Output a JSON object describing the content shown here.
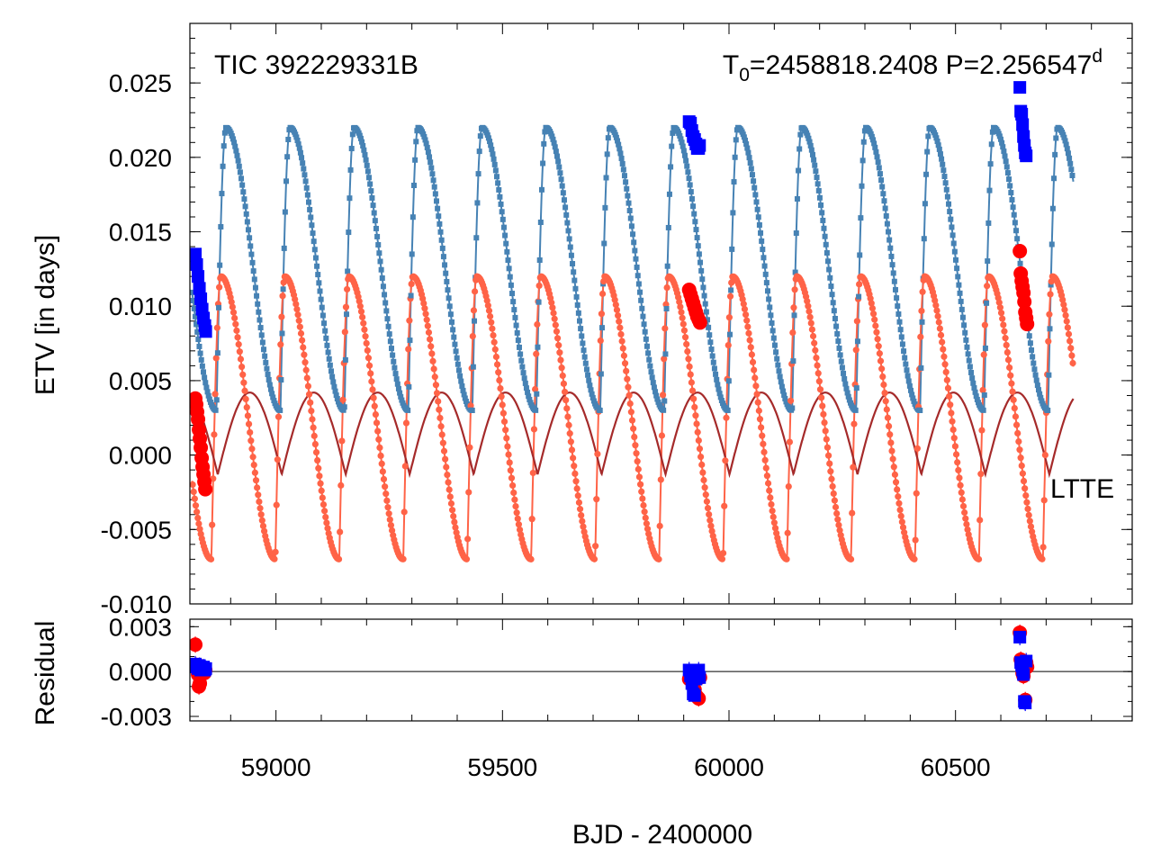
{
  "figure": {
    "target": "TIC 392229331B",
    "ephemeris": {
      "t0_label": "T",
      "t0_sub": "0",
      "t0_value": "=2458818.2408 P=2.256547",
      "t0_sup": "d"
    },
    "ltte_label": "LTTE"
  },
  "chart_data": [
    {
      "panel": "main",
      "type": "scatter",
      "title": "",
      "xlabel": "BJD - 2400000",
      "ylabel": "ETV [in days]",
      "xlim": [
        58810,
        60890
      ],
      "ylim": [
        -0.01,
        0.029
      ],
      "yticks": [
        -0.01,
        -0.005,
        0.0,
        0.005,
        0.01,
        0.015,
        0.02,
        0.025
      ],
      "ytick_labels": [
        "-0.010",
        "-0.005",
        "0.000",
        "0.005",
        "0.010",
        "0.015",
        "0.020",
        "0.025"
      ],
      "xticks": [
        59000,
        59500,
        60000,
        60500
      ],
      "xtick_labels": [
        "59000",
        "59500",
        "60000",
        "60500"
      ],
      "x_minor_step": 100,
      "grid": false,
      "model_range": [
        58815,
        60760
      ],
      "model": {
        "period_days": 141.2,
        "sampling_days": 2.2565,
        "primary": {
          "name": "primary model",
          "color": "#4682b4",
          "marker": "square",
          "min": 0.003,
          "max": 0.022,
          "rise_fraction": 0.15
        },
        "secondary": {
          "name": "secondary model",
          "color": "#ff6347",
          "marker": "circle",
          "min": -0.007,
          "max": 0.012,
          "rise_fraction": 0.15
        },
        "ltte": {
          "name": "LTTE",
          "color": "#a52a2a",
          "min": -0.0013,
          "max": 0.0042
        }
      },
      "series": [
        {
          "name": "primary observed",
          "color": "#0000ff",
          "marker": "square",
          "x": [
            58822,
            58825,
            58828,
            58831,
            58834,
            58837,
            58840,
            58843,
            58845,
            59912,
            59915,
            59918,
            59921,
            59924,
            59927,
            59930,
            59933,
            59935,
            60642,
            60644,
            60646,
            60648,
            60650,
            60652,
            60654,
            60656
          ],
          "y": [
            0.0135,
            0.0128,
            0.012,
            0.0112,
            0.0105,
            0.0098,
            0.0092,
            0.0087,
            0.0083,
            0.0224,
            0.0223,
            0.0218,
            0.0214,
            0.0212,
            0.0209,
            0.0206,
            0.0206,
            0.0208,
            0.0247,
            0.0231,
            0.0229,
            0.0222,
            0.0214,
            0.0208,
            0.0203,
            0.0201
          ]
        },
        {
          "name": "secondary observed",
          "color": "#ff0000",
          "marker": "circle",
          "x": [
            58822,
            58824,
            58826,
            58828,
            58830,
            58832,
            58834,
            58836,
            58838,
            58840,
            58842,
            58844,
            59912,
            59915,
            59918,
            59921,
            59924,
            59927,
            59930,
            59933,
            59936,
            60642,
            60644,
            60646,
            60648,
            60650,
            60652,
            60654,
            60656,
            60658
          ],
          "y": [
            0.0038,
            0.0034,
            0.0029,
            0.0024,
            0.0017,
            0.0011,
            0.0005,
            -0.0002,
            -0.0008,
            -0.0013,
            -0.0018,
            -0.0023,
            0.0111,
            0.0108,
            0.0105,
            0.0102,
            0.0099,
            0.0096,
            0.0093,
            0.0091,
            0.0089,
            0.0137,
            0.0122,
            0.0117,
            0.0113,
            0.0109,
            0.0103,
            0.0096,
            0.0092,
            0.0088
          ]
        }
      ]
    },
    {
      "panel": "residual",
      "type": "scatter",
      "xlabel": "BJD - 2400000",
      "ylabel": "Residual",
      "xlim": [
        58810,
        60890
      ],
      "ylim": [
        -0.0033,
        0.0035
      ],
      "yticks": [
        -0.003,
        0.0,
        0.003
      ],
      "ytick_labels": [
        "-0.003",
        "0.000",
        "0.003"
      ],
      "zero_line": true,
      "series": [
        {
          "name": "primary residual",
          "color": "#0000ff",
          "marker": "square",
          "x": [
            58822,
            58825,
            58828,
            58831,
            58834,
            58837,
            58840,
            58843,
            58845,
            59912,
            59915,
            59918,
            59921,
            59924,
            59927,
            59930,
            59933,
            59935,
            60642,
            60644,
            60646,
            60648,
            60650,
            60652,
            60654,
            60656
          ],
          "y": [
            0.0005,
            0.0003,
            0.0002,
            0.0004,
            0.0001,
            0.0002,
            0.0003,
            0.0001,
            0.0002,
            0.0001,
            -0.0003,
            -0.0008,
            -0.0015,
            -0.0016,
            -0.0005,
            -0.0002,
            0.0001,
            -0.0004,
            0.0023,
            0.0006,
            0.0004,
            0.0001,
            -0.0002,
            -0.002,
            -0.0021,
            0.0007
          ]
        },
        {
          "name": "secondary residual",
          "color": "#ff0000",
          "marker": "circle",
          "x": [
            58822,
            58824,
            58826,
            58828,
            58830,
            58832,
            58834,
            58836,
            58838,
            58840,
            58842,
            58844,
            59912,
            59915,
            59918,
            59921,
            59924,
            59927,
            59930,
            59933,
            59936,
            60642,
            60644,
            60646,
            60648,
            60650,
            60652,
            60654,
            60656,
            60658
          ],
          "y": [
            0.0018,
            0.0004,
            0.0002,
            -0.0002,
            -0.001,
            -0.0008,
            0.0001,
            0.0003,
            0.0,
            0.0002,
            -0.0001,
            0.0001,
            -0.0005,
            -0.0004,
            -0.0002,
            -0.0006,
            -0.0012,
            -0.0016,
            -0.0017,
            -0.0018,
            -0.0004,
            0.0026,
            0.0008,
            0.0005,
            -0.0001,
            -0.0003,
            0.0004,
            -0.0019,
            0.0006,
            0.0003
          ]
        }
      ]
    }
  ]
}
